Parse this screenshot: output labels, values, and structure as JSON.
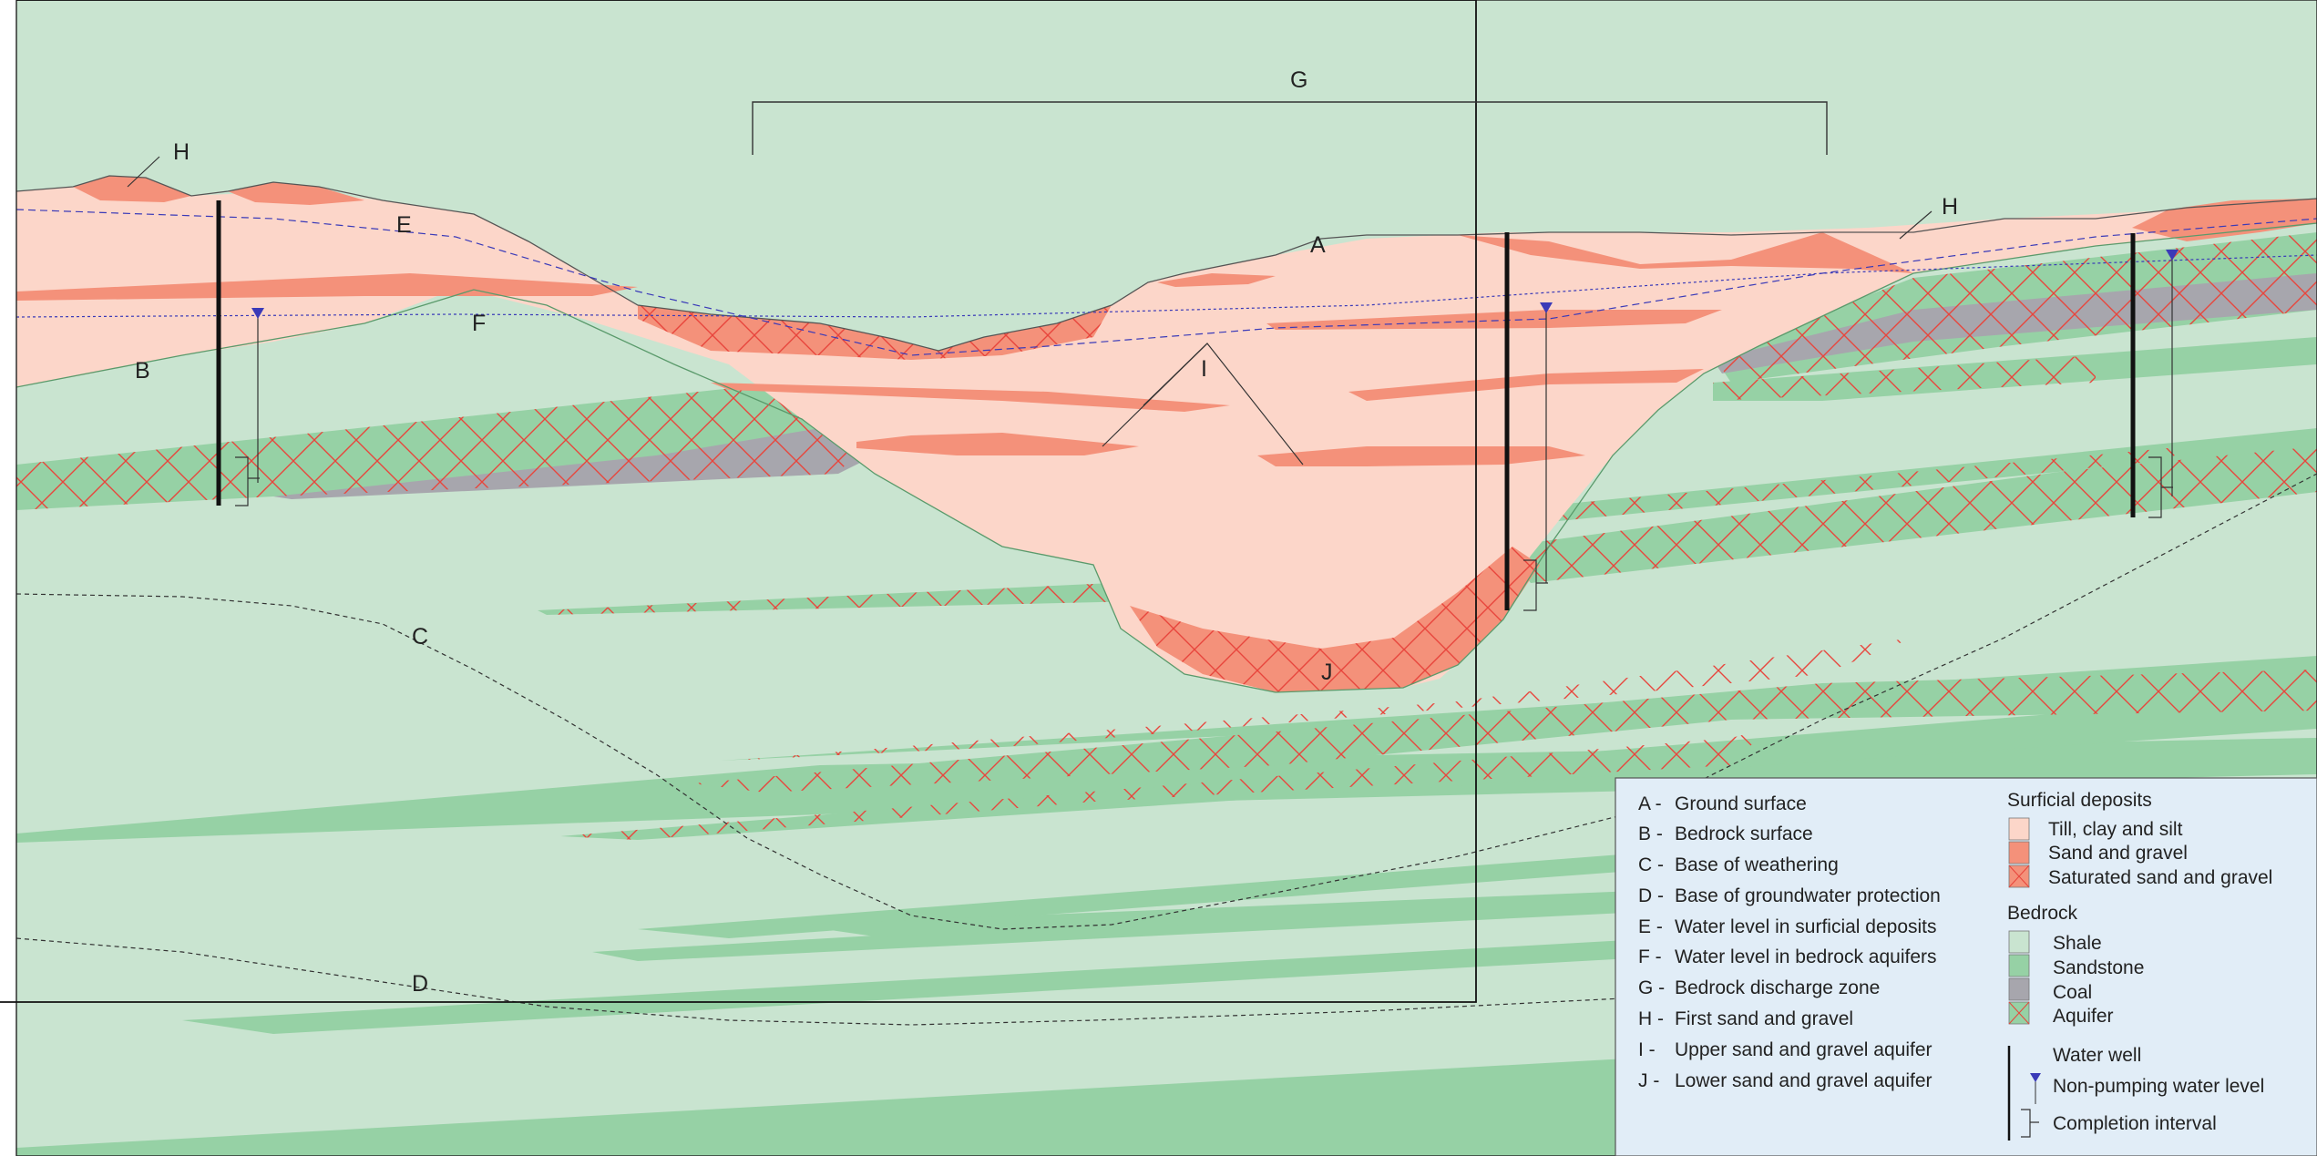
{
  "labels": {
    "A": "A",
    "B": "B",
    "C": "C",
    "D": "D",
    "E": "E",
    "F": "F",
    "G": "G",
    "H1": "H",
    "H2": "H",
    "I": "I",
    "J": "J"
  },
  "legend": {
    "letters": [
      {
        "key": "A -",
        "text": "Ground surface"
      },
      {
        "key": "B -",
        "text": "Bedrock surface"
      },
      {
        "key": "C -",
        "text": "Base of weathering"
      },
      {
        "key": "D -",
        "text": "Base of groundwater protection"
      },
      {
        "key": "E -",
        "text": "Water level in surficial deposits"
      },
      {
        "key": "F -",
        "text": "Water level in bedrock aquifers"
      },
      {
        "key": "G -",
        "text": "Bedrock discharge zone"
      },
      {
        "key": "H -",
        "text": "First sand and gravel"
      },
      {
        "key": "I -",
        "text": "Upper sand and gravel aquifer"
      },
      {
        "key": "J -",
        "text": "Lower sand and gravel aquifer"
      }
    ],
    "surficial_heading": "Surficial deposits",
    "surficial": [
      {
        "text": "Till, clay and silt",
        "swatch": "till"
      },
      {
        "text": "Sand and gravel",
        "swatch": "sand"
      },
      {
        "text": "Saturated sand and gravel",
        "swatch": "satsand"
      }
    ],
    "bedrock_heading": "Bedrock",
    "bedrock": [
      {
        "text": "Shale",
        "swatch": "shale"
      },
      {
        "text": "Sandstone",
        "swatch": "sandstone"
      },
      {
        "text": "Coal",
        "swatch": "coal"
      },
      {
        "text": "Aquifer",
        "swatch": "aquifer"
      }
    ],
    "well": {
      "water_well": "Water well",
      "water_level": "Non-pumping water level",
      "completion": "Completion interval"
    }
  },
  "colors": {
    "till": "#fcd6c9",
    "sand": "#f4917a",
    "shale": "#c9e4d0",
    "sandstone": "#96d1a5",
    "coal": "#a7a6ad",
    "aquifer_lines": "#e8453c",
    "water_line": "#3a3ab8",
    "legend_bg": "#e1edf7",
    "icons": {
      "water_level_marker": "triangle-down-icon",
      "completion_marker": "bracket-icon"
    }
  }
}
